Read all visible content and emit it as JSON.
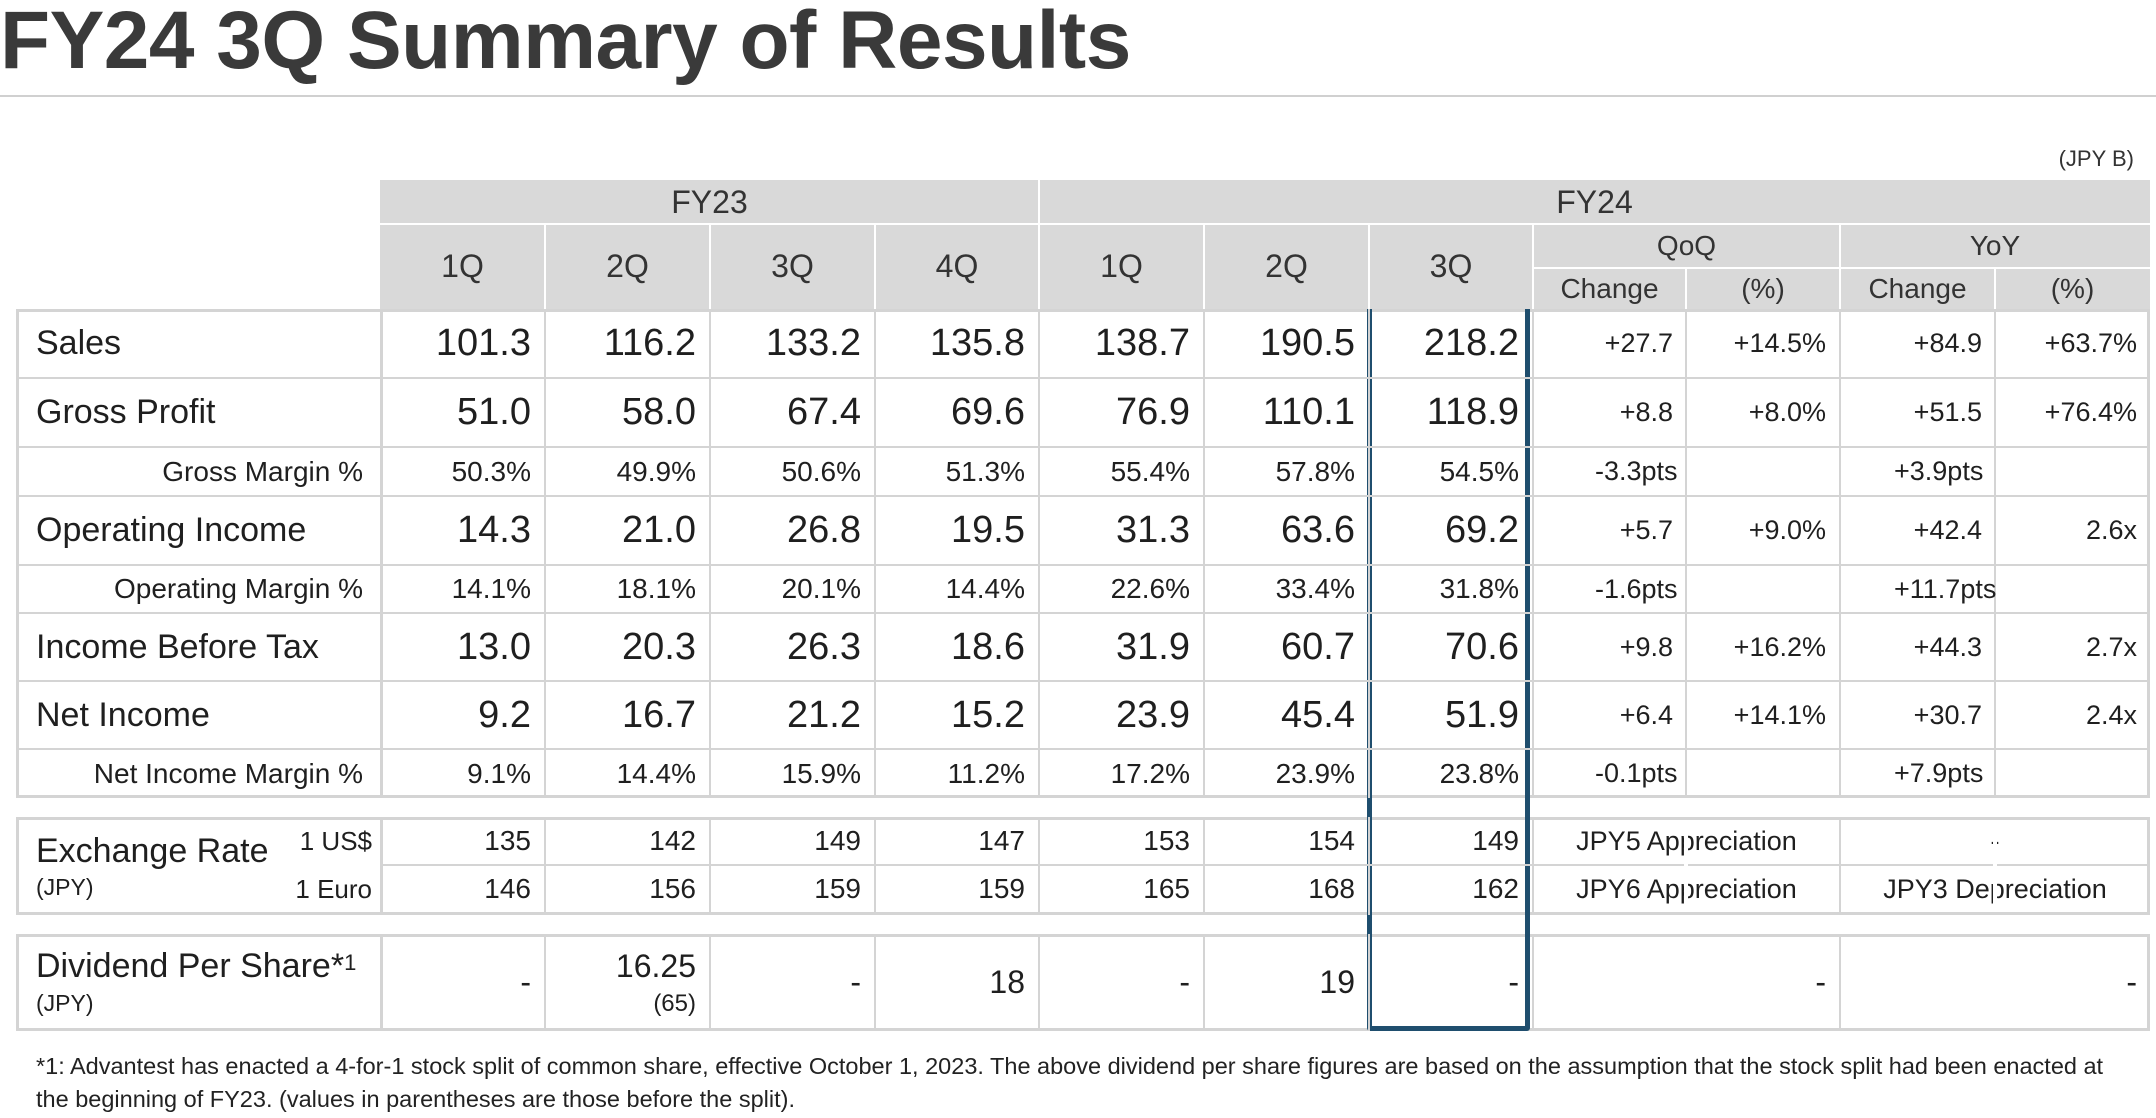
{
  "title": "FY24 3Q Summary of Results",
  "unit": "(JPY B)",
  "header": {
    "fy23": "FY23",
    "fy24": "FY24",
    "quarters": [
      "1Q",
      "2Q",
      "3Q",
      "4Q",
      "1Q",
      "2Q",
      "3Q"
    ],
    "qoq": "QoQ",
    "yoy": "YoY",
    "change": "Change",
    "pct": "(%)"
  },
  "rows": [
    {
      "label": "Sales",
      "values": [
        "101.3",
        "116.2",
        "133.2",
        "135.8",
        "138.7",
        "190.5",
        "218.2"
      ],
      "qoq_change": "+27.7",
      "qoq_pct": "+14.5%",
      "yoy_change": "+84.9",
      "yoy_pct": "+63.7%"
    },
    {
      "label": "Gross Profit",
      "values": [
        "51.0",
        "58.0",
        "67.4",
        "69.6",
        "76.9",
        "110.1",
        "118.9"
      ],
      "qoq_change": "+8.8",
      "qoq_pct": "+8.0%",
      "yoy_change": "+51.5",
      "yoy_pct": "+76.4%"
    },
    {
      "label": "Gross Margin %",
      "values": [
        "50.3%",
        "49.9%",
        "50.6%",
        "51.3%",
        "55.4%",
        "57.8%",
        "54.5%"
      ],
      "qoq_change": "-3.3pts",
      "qoq_pct": "",
      "yoy_change": "+3.9pts",
      "yoy_pct": ""
    },
    {
      "label": "Operating Income",
      "values": [
        "14.3",
        "21.0",
        "26.8",
        "19.5",
        "31.3",
        "63.6",
        "69.2"
      ],
      "qoq_change": "+5.7",
      "qoq_pct": "+9.0%",
      "yoy_change": "+42.4",
      "yoy_pct": "2.6x"
    },
    {
      "label": "Operating Margin %",
      "values": [
        "14.1%",
        "18.1%",
        "20.1%",
        "14.4%",
        "22.6%",
        "33.4%",
        "31.8%"
      ],
      "qoq_change": "-1.6pts",
      "qoq_pct": "",
      "yoy_change": "+11.7pts",
      "yoy_pct": ""
    },
    {
      "label": "Income Before Tax",
      "values": [
        "13.0",
        "20.3",
        "26.3",
        "18.6",
        "31.9",
        "60.7",
        "70.6"
      ],
      "qoq_change": "+9.8",
      "qoq_pct": "+16.2%",
      "yoy_change": "+44.3",
      "yoy_pct": "2.7x"
    },
    {
      "label": "Net Income",
      "values": [
        "9.2",
        "16.7",
        "21.2",
        "15.2",
        "23.9",
        "45.4",
        "51.9"
      ],
      "qoq_change": "+6.4",
      "qoq_pct": "+14.1%",
      "yoy_change": "+30.7",
      "yoy_pct": "2.4x"
    },
    {
      "label": "Net Income Margin %",
      "values": [
        "9.1%",
        "14.4%",
        "15.9%",
        "11.2%",
        "17.2%",
        "23.9%",
        "23.8%"
      ],
      "qoq_change": "-0.1pts",
      "qoq_pct": "",
      "yoy_change": "+7.9pts",
      "yoy_pct": ""
    }
  ],
  "exchange": {
    "label": "Exchange Rate",
    "sublabel": "(JPY)",
    "rows": [
      {
        "currency": "1 US$",
        "values": [
          "135",
          "142",
          "149",
          "147",
          "153",
          "154",
          "149"
        ],
        "qoq": "JPY5 Appreciation",
        "yoy": "-"
      },
      {
        "currency": "1 Euro",
        "values": [
          "146",
          "156",
          "159",
          "159",
          "165",
          "168",
          "162"
        ],
        "qoq": "JPY6 Appreciation",
        "yoy": "JPY3 Depreciation"
      }
    ]
  },
  "dividend": {
    "label": "Dividend Per Share*",
    "sup": "1",
    "sublabel": "(JPY)",
    "values": [
      "-",
      "16.25",
      "-",
      "18",
      "-",
      "19",
      "-"
    ],
    "pre_split": "(65)",
    "qoq": "-",
    "yoy": "-"
  },
  "footnote": "*1: Advantest has enacted a 4-for-1 stock split of common share, effective October 1, 2023. The above dividend per share figures are based on the assumption that the stock split had been enacted at the beginning of FY23. (values in parentheses are those before the split).",
  "colors": {
    "header_bg": "#d9d9d9",
    "highlight_border": "#1f4e6e",
    "grid": "#d4d4d4"
  }
}
